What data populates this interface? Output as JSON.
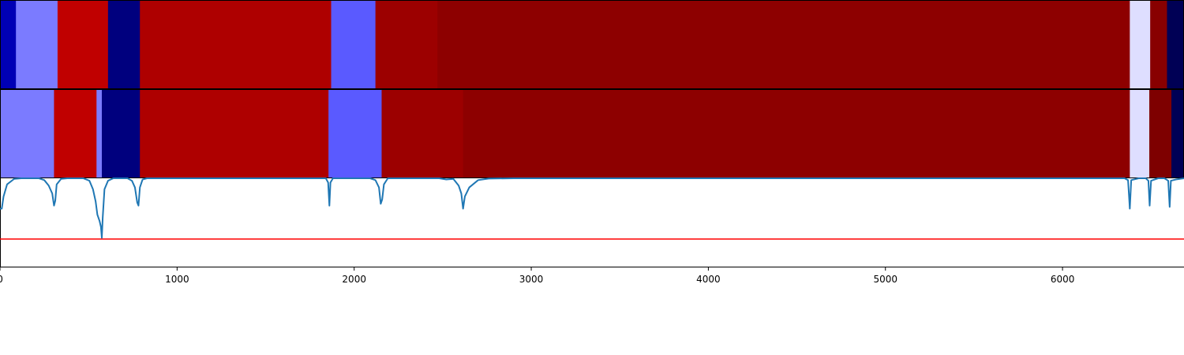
{
  "chart_data": {
    "type": "heatmap",
    "xlim": [
      0,
      6686
    ],
    "x_ticks": [
      {
        "value": 0,
        "label": "0"
      },
      {
        "value": 1000,
        "label": "1000"
      },
      {
        "value": 2000,
        "label": "2000"
      },
      {
        "value": 3000,
        "label": "3000"
      },
      {
        "value": 4000,
        "label": "4000"
      },
      {
        "value": 5000,
        "label": "5000"
      },
      {
        "value": 6000,
        "label": "6000"
      }
    ],
    "rows": [
      {
        "segments": [
          {
            "start": 0,
            "end": 90,
            "color": "#0000b5"
          },
          {
            "start": 90,
            "end": 325,
            "color": "#7b7bff"
          },
          {
            "start": 325,
            "end": 610,
            "color": "#c00000"
          },
          {
            "start": 610,
            "end": 790,
            "color": "#00007e"
          },
          {
            "start": 790,
            "end": 1870,
            "color": "#ae0000"
          },
          {
            "start": 1870,
            "end": 2120,
            "color": "#5a5aff"
          },
          {
            "start": 2120,
            "end": 2470,
            "color": "#9c0000"
          },
          {
            "start": 2470,
            "end": 6380,
            "color": "#8d0000"
          },
          {
            "start": 6380,
            "end": 6495,
            "color": "#dedeff"
          },
          {
            "start": 6495,
            "end": 6590,
            "color": "#880000"
          },
          {
            "start": 6590,
            "end": 6686,
            "color": "#000055"
          }
        ]
      },
      {
        "segments": [
          {
            "start": 0,
            "end": 305,
            "color": "#7b7bff"
          },
          {
            "start": 305,
            "end": 545,
            "color": "#c00000"
          },
          {
            "start": 545,
            "end": 575,
            "color": "#7b7bff"
          },
          {
            "start": 575,
            "end": 790,
            "color": "#00007e"
          },
          {
            "start": 790,
            "end": 1855,
            "color": "#ae0000"
          },
          {
            "start": 1855,
            "end": 2155,
            "color": "#5a5aff"
          },
          {
            "start": 2155,
            "end": 2615,
            "color": "#9c0000"
          },
          {
            "start": 2615,
            "end": 6380,
            "color": "#8d0000"
          },
          {
            "start": 6380,
            "end": 6490,
            "color": "#dedeff"
          },
          {
            "start": 6490,
            "end": 6615,
            "color": "#7e0000"
          },
          {
            "start": 6615,
            "end": 6686,
            "color": "#000055"
          }
        ]
      }
    ],
    "line_series": {
      "color": "#1f77b4",
      "ylim": [
        0,
        1
      ],
      "points": [
        [
          0,
          0.5
        ],
        [
          10,
          0.5
        ],
        [
          20,
          0.7
        ],
        [
          40,
          0.9
        ],
        [
          80,
          0.99
        ],
        [
          120,
          1.0
        ],
        [
          220,
          1.0
        ],
        [
          250,
          0.97
        ],
        [
          275,
          0.88
        ],
        [
          295,
          0.75
        ],
        [
          305,
          0.55
        ],
        [
          312,
          0.63
        ],
        [
          320,
          0.9
        ],
        [
          345,
          0.99
        ],
        [
          380,
          1.0
        ],
        [
          470,
          1.0
        ],
        [
          505,
          0.96
        ],
        [
          525,
          0.82
        ],
        [
          540,
          0.62
        ],
        [
          550,
          0.4
        ],
        [
          562,
          0.3
        ],
        [
          570,
          0.2
        ],
        [
          575,
          0.02
        ],
        [
          580,
          0.35
        ],
        [
          590,
          0.82
        ],
        [
          610,
          0.96
        ],
        [
          640,
          1.0
        ],
        [
          720,
          1.0
        ],
        [
          745,
          0.96
        ],
        [
          762,
          0.85
        ],
        [
          775,
          0.6
        ],
        [
          782,
          0.55
        ],
        [
          790,
          0.85
        ],
        [
          805,
          0.98
        ],
        [
          830,
          1.0
        ],
        [
          1840,
          1.0
        ],
        [
          1853,
          0.93
        ],
        [
          1860,
          0.55
        ],
        [
          1866,
          0.93
        ],
        [
          1880,
          1.0
        ],
        [
          2090,
          1.0
        ],
        [
          2120,
          0.97
        ],
        [
          2140,
          0.85
        ],
        [
          2150,
          0.58
        ],
        [
          2158,
          0.65
        ],
        [
          2168,
          0.9
        ],
        [
          2190,
          1.0
        ],
        [
          2480,
          1.0
        ],
        [
          2520,
          0.98
        ],
        [
          2560,
          0.99
        ],
        [
          2590,
          0.88
        ],
        [
          2605,
          0.75
        ],
        [
          2615,
          0.5
        ],
        [
          2625,
          0.7
        ],
        [
          2650,
          0.85
        ],
        [
          2700,
          0.97
        ],
        [
          2760,
          0.995
        ],
        [
          2900,
          1.0
        ],
        [
          6350,
          1.0
        ],
        [
          6370,
          0.97
        ],
        [
          6380,
          0.5
        ],
        [
          6388,
          0.97
        ],
        [
          6430,
          1.0
        ],
        [
          6470,
          1.0
        ],
        [
          6485,
          0.96
        ],
        [
          6492,
          0.55
        ],
        [
          6500,
          0.96
        ],
        [
          6540,
          1.0
        ],
        [
          6575,
          1.0
        ],
        [
          6597,
          0.96
        ],
        [
          6605,
          0.53
        ],
        [
          6612,
          0.96
        ],
        [
          6640,
          0.98
        ],
        [
          6686,
          1.0
        ]
      ]
    },
    "threshold_line": {
      "y": 0,
      "color": "#ff0000"
    }
  }
}
